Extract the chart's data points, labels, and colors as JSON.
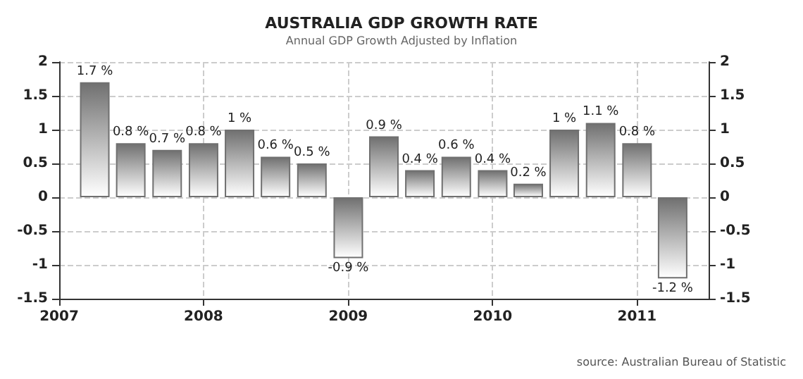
{
  "chart_data": {
    "type": "bar",
    "title": "AUSTRALIA GDP GROWTH RATE",
    "subtitle": "Annual GDP Growth Adjusted by Inflation",
    "annotations": [
      "source: Australian Bureau of Statistic"
    ],
    "x": [
      "2007-04",
      "2007-07",
      "2007-10",
      "2008-01",
      "2008-04",
      "2008-07",
      "2008-10",
      "2009-01",
      "2009-04",
      "2009-07",
      "2009-10",
      "2010-01",
      "2010-04",
      "2010-07",
      "2010-10",
      "2011-01",
      "2011-04"
    ],
    "values": [
      1.7,
      0.8,
      0.7,
      0.8,
      1,
      0.6,
      0.5,
      -0.9,
      0.9,
      0.4,
      0.6,
      0.4,
      0.2,
      1,
      1.1,
      0.8,
      -1.2
    ],
    "value_labels": [
      "1.7 %",
      "0.8 %",
      "0.7 %",
      "0.8 %",
      "1 %",
      "0.6 %",
      "0.5 %",
      "-0.9 %",
      "0.9 %",
      "0.4 %",
      "0.6 %",
      "0.4 %",
      "0.2 %",
      "1 %",
      "1.1 %",
      "0.8 %",
      "-1.2 %"
    ],
    "color": "#707070",
    "xlim": [
      "2007",
      "2011-07"
    ],
    "xticks": [
      {
        "value": "2007",
        "label": "2007"
      },
      {
        "value": "2008",
        "label": "2008"
      },
      {
        "value": "2009",
        "label": "2009"
      },
      {
        "value": "2010",
        "label": "2010"
      },
      {
        "value": "2011",
        "label": "2011"
      }
    ],
    "ylim": [
      -1.5,
      2
    ],
    "yticks": [
      -1.5,
      -1,
      -0.5,
      0,
      0.5,
      1,
      1.5,
      2
    ],
    "y2lim": [
      -1.5,
      2
    ],
    "y2ticks": [
      -1.5,
      -1,
      -0.5,
      0,
      0.5,
      1,
      1.5,
      2
    ],
    "grid": true
  }
}
